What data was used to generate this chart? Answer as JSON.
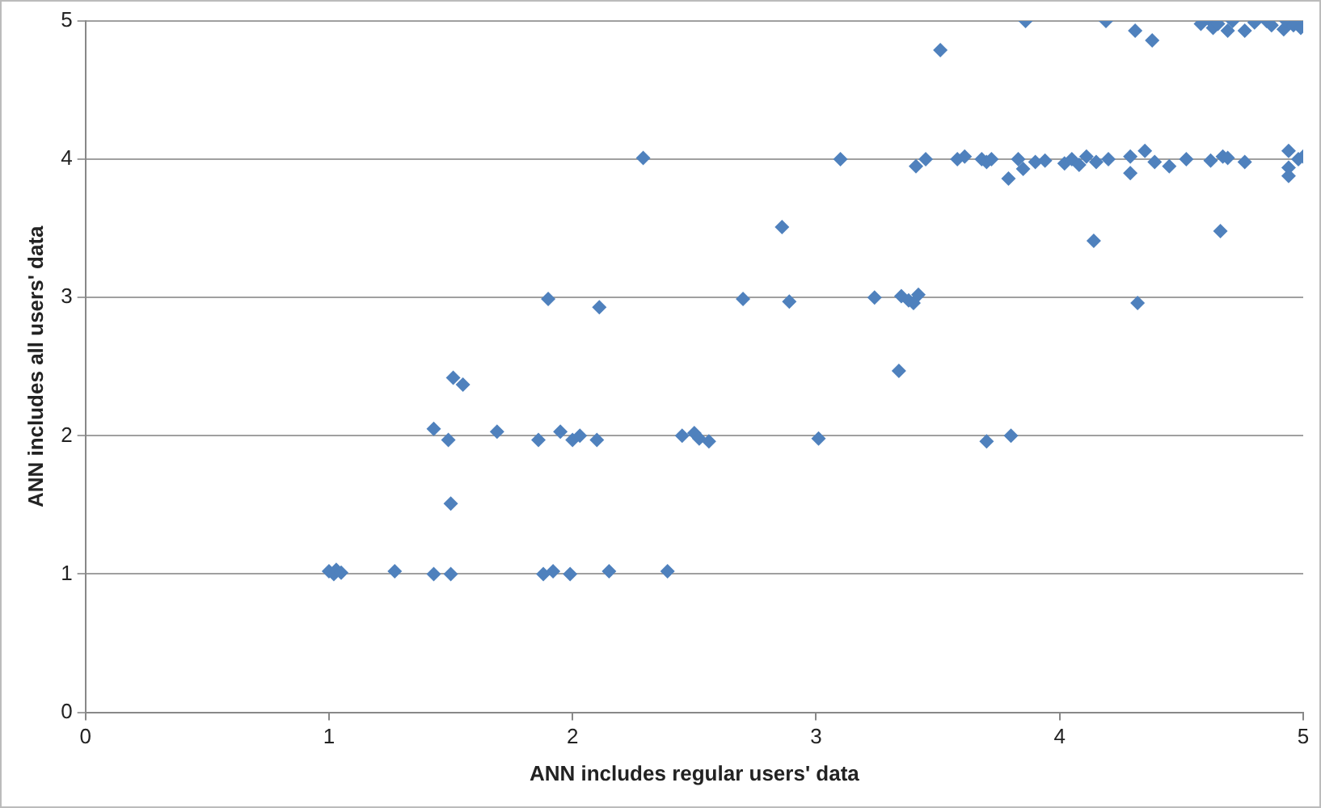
{
  "chart_data": {
    "type": "scatter",
    "xlabel": "ANN includes regular users' data",
    "ylabel": "ANN includes all users' data",
    "xlim": [
      0,
      5
    ],
    "ylim": [
      0,
      5
    ],
    "xticks": [
      0,
      1,
      2,
      3,
      4,
      5
    ],
    "yticks": [
      0,
      1,
      2,
      3,
      4,
      5
    ],
    "grid": "y",
    "legend": false,
    "marker": "diamond",
    "series": [
      {
        "color": "#4f81bd",
        "x": [
          1.0,
          1.02,
          1.03,
          1.05,
          1.27,
          1.43,
          1.5,
          1.88,
          1.92,
          1.99,
          2.15,
          2.39,
          1.43,
          1.49,
          1.69,
          1.86,
          1.95,
          2.0,
          2.03,
          2.1,
          2.45,
          2.5,
          2.52,
          2.56,
          3.01,
          3.7,
          3.8,
          1.5,
          1.51,
          1.55,
          1.9,
          2.11,
          2.7,
          2.89,
          3.24,
          3.35,
          3.38,
          3.4,
          3.42,
          4.32,
          3.34,
          2.86,
          4.14,
          4.66,
          2.29,
          3.1,
          3.41,
          3.45,
          3.58,
          3.61,
          3.68,
          3.7,
          3.72,
          3.79,
          3.83,
          3.85,
          3.9,
          3.94,
          4.02,
          4.05,
          4.08,
          4.11,
          4.15,
          4.2,
          4.29,
          4.29,
          4.35,
          4.39,
          4.45,
          4.52,
          4.62,
          4.67,
          4.69,
          4.76,
          4.94,
          4.94,
          4.94,
          4.98,
          5.0,
          3.51,
          3.86,
          4.19,
          4.31,
          4.38,
          4.58,
          4.62,
          4.63,
          4.65,
          4.69,
          4.71,
          4.76,
          4.8,
          4.85,
          4.87,
          4.92,
          4.93,
          4.96,
          4.99,
          5.0
        ],
        "values": [
          1.02,
          1.0,
          1.03,
          1.01,
          1.02,
          1.0,
          1.0,
          1.0,
          1.02,
          1.0,
          1.02,
          1.02,
          2.05,
          1.97,
          2.03,
          1.97,
          2.03,
          1.97,
          2.0,
          1.97,
          2.0,
          2.02,
          1.98,
          1.96,
          1.98,
          1.96,
          2.0,
          1.51,
          2.42,
          2.37,
          2.99,
          2.93,
          2.99,
          2.97,
          3.0,
          3.01,
          2.98,
          2.96,
          3.02,
          2.96,
          2.47,
          3.51,
          3.41,
          3.48,
          4.01,
          4.0,
          3.95,
          4.0,
          4.0,
          4.02,
          4.0,
          3.98,
          4.0,
          3.86,
          4.0,
          3.93,
          3.98,
          3.99,
          3.97,
          4.0,
          3.96,
          4.02,
          3.98,
          4.0,
          4.02,
          3.9,
          4.06,
          3.98,
          3.95,
          4.0,
          3.99,
          4.02,
          4.01,
          3.98,
          4.06,
          3.94,
          3.88,
          4.0,
          4.02,
          4.79,
          5.0,
          5.0,
          4.93,
          4.86,
          4.98,
          5.0,
          4.95,
          4.98,
          4.93,
          5.0,
          4.93,
          4.99,
          5.0,
          4.97,
          4.94,
          5.0,
          4.97,
          4.95,
          5.0
        ]
      }
    ]
  }
}
